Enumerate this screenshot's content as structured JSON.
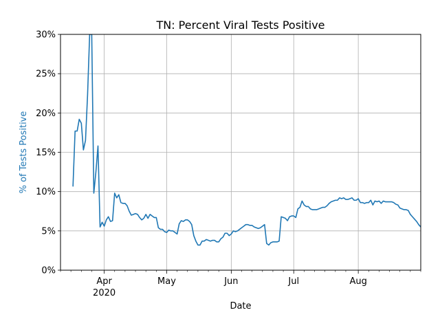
{
  "chart_data": {
    "type": "line",
    "title": "TN: Percent Viral Tests Positive",
    "xlabel": "Date",
    "ylabel": "% of Tests Positive",
    "ylabel_color": "#1f77b4",
    "series_color": "#1f77b4",
    "grid": true,
    "xlim": [
      "2020-03-11",
      "2020-08-31"
    ],
    "ylim": [
      0,
      30
    ],
    "y_ticks": [
      0,
      5,
      10,
      15,
      20,
      25,
      30
    ],
    "y_tick_labels": [
      "0%",
      "5%",
      "10%",
      "15%",
      "20%",
      "25%",
      "30%"
    ],
    "x_major_ticks": [
      {
        "date": "2020-04-01",
        "label": "Apr",
        "sublabel": "2020"
      },
      {
        "date": "2020-05-01",
        "label": "May",
        "sublabel": ""
      },
      {
        "date": "2020-06-01",
        "label": "Jun",
        "sublabel": ""
      },
      {
        "date": "2020-07-01",
        "label": "Jul",
        "sublabel": ""
      },
      {
        "date": "2020-08-01",
        "label": "Aug",
        "sublabel": ""
      }
    ],
    "x_minor_ticks": [
      "2020-03-11",
      "2020-03-16",
      "2020-03-21",
      "2020-03-26",
      "2020-04-06",
      "2020-04-11",
      "2020-04-16",
      "2020-04-21",
      "2020-04-26",
      "2020-05-06",
      "2020-05-11",
      "2020-05-16",
      "2020-05-21",
      "2020-05-26",
      "2020-06-06",
      "2020-06-11",
      "2020-06-16",
      "2020-06-21",
      "2020-06-26",
      "2020-07-06",
      "2020-07-11",
      "2020-07-16",
      "2020-07-21",
      "2020-07-26",
      "2020-08-06",
      "2020-08-11",
      "2020-08-16",
      "2020-08-21",
      "2020-08-26",
      "2020-08-31"
    ],
    "series": [
      {
        "start_date": "2020-03-17",
        "values": [
          10.7,
          17.7,
          17.7,
          19.2,
          18.7,
          15.3,
          16.5,
          22.3,
          30.0,
          30.0,
          9.8,
          12.5,
          15.8,
          5.5,
          6.1,
          5.6,
          6.4,
          6.8,
          6.2,
          6.3,
          9.8,
          9.2,
          9.6,
          8.6,
          8.5,
          8.5,
          8.2,
          7.5,
          7.0,
          7.1,
          7.2,
          7.1,
          6.7,
          6.4,
          6.6,
          7.1,
          6.6,
          7.1,
          6.9,
          6.7,
          6.7,
          5.4,
          5.2,
          5.2,
          4.9,
          4.8,
          5.1,
          5.0,
          5.0,
          4.8,
          4.6,
          5.9,
          6.3,
          6.2,
          6.4,
          6.4,
          6.2,
          5.8,
          4.4,
          3.7,
          3.2,
          3.2,
          3.7,
          3.7,
          3.9,
          3.8,
          3.7,
          3.8,
          3.8,
          3.6,
          3.6,
          4.0,
          4.2,
          4.7,
          4.7,
          4.4,
          4.6,
          5.0,
          4.9,
          5.0,
          5.2,
          5.4,
          5.6,
          5.8,
          5.8,
          5.7,
          5.7,
          5.5,
          5.4,
          5.3,
          5.4,
          5.6,
          5.8,
          3.4,
          3.2,
          3.5,
          3.6,
          3.6,
          3.6,
          3.7,
          6.8,
          6.7,
          6.6,
          6.3,
          6.8,
          6.9,
          6.9,
          6.7,
          7.8,
          8.0,
          8.8,
          8.3,
          8.1,
          8.1,
          7.8,
          7.7,
          7.7,
          7.7,
          7.8,
          7.9,
          8.0,
          8.0,
          8.2,
          8.5,
          8.7,
          8.8,
          8.9,
          8.9,
          9.2,
          9.1,
          9.2,
          9.0,
          9.0,
          9.1,
          9.2,
          8.9,
          8.9,
          9.1,
          8.6,
          8.6,
          8.5,
          8.6,
          8.6,
          8.9,
          8.3,
          8.8,
          8.7,
          8.8,
          8.5,
          8.8,
          8.7,
          8.7,
          8.7,
          8.7,
          8.6,
          8.4,
          8.3,
          7.9,
          7.8,
          7.7,
          7.7,
          7.6,
          7.1,
          6.8,
          6.5,
          6.2,
          5.8,
          5.5,
          5.3,
          5.3
        ]
      }
    ]
  }
}
